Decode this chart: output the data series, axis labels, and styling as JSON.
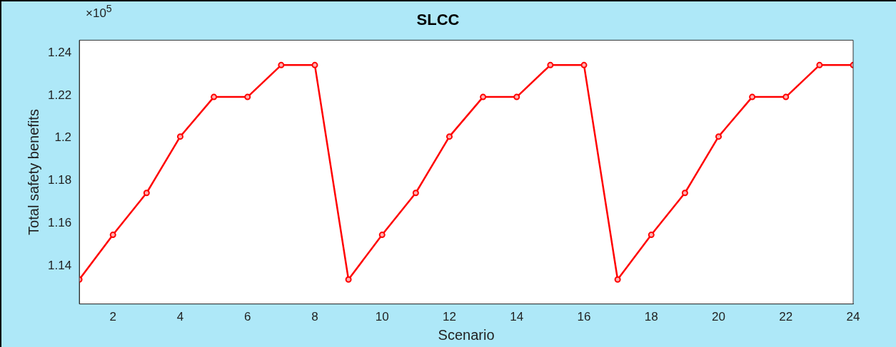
{
  "chart_data": {
    "type": "line",
    "title": "SLCC",
    "xlabel": "Scenario",
    "ylabel": "Total safety benefits",
    "x": [
      1,
      2,
      3,
      4,
      5,
      6,
      7,
      8,
      9,
      10,
      11,
      12,
      13,
      14,
      15,
      16,
      17,
      18,
      19,
      20,
      21,
      22,
      23,
      24
    ],
    "series": [
      {
        "color": "#ff0000",
        "values": [
          1.1335,
          1.1545,
          1.1742,
          1.2007,
          1.2193,
          1.2193,
          1.2343,
          1.2343,
          1.1335,
          1.1545,
          1.1742,
          1.2007,
          1.2193,
          1.2193,
          1.2343,
          1.2343,
          1.1335,
          1.1545,
          1.1742,
          1.2007,
          1.2193,
          1.2193,
          1.2343,
          1.2343
        ]
      }
    ],
    "xlim": [
      1,
      24
    ],
    "xticks": [
      2,
      4,
      6,
      8,
      10,
      12,
      14,
      16,
      18,
      20,
      22,
      24
    ],
    "ylim": [
      1.122,
      1.246
    ],
    "yticks": [
      1.14,
      1.16,
      1.18,
      1.2,
      1.22,
      1.24
    ],
    "annotations": [
      "×10$^{5}$"
    ],
    "grid": false,
    "legend": false,
    "marker": "circle",
    "line_style": "solid"
  }
}
